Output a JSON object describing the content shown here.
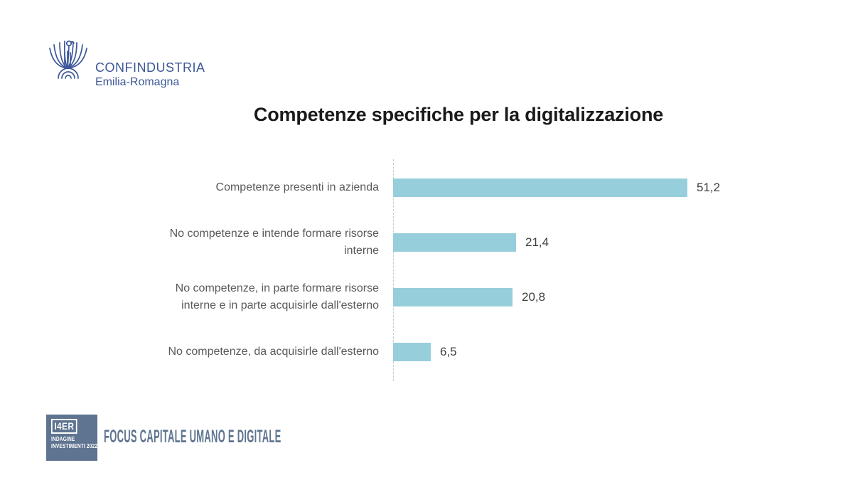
{
  "header": {
    "logo": {
      "org": "CONFINDUSTRIA",
      "region": "Emilia-Romagna"
    }
  },
  "title": "Competenze specifiche per la digitalizzazione",
  "chart_data": {
    "type": "bar",
    "orientation": "horizontal",
    "title": "Competenze specifiche per la digitalizzazione",
    "categories": [
      "Competenze presenti in azienda",
      "No competenze e intende formare risorse interne",
      "No competenze, in parte formare risorse interne e in parte acquisirle dall'esterno",
      "No competenze, da acquisirle dall'esterno"
    ],
    "values": [
      51.2,
      21.4,
      20.8,
      6.5
    ],
    "value_labels": [
      "51,2",
      "21,4",
      "20,8",
      "6,5"
    ],
    "label_lines": [
      [
        "Competenze presenti in azienda"
      ],
      [
        "No competenze e intende formare risorse",
        "interne"
      ],
      [
        "No competenze, in parte formare risorse",
        "interne e in parte acquisirle dall'esterno"
      ],
      [
        "No competenze, da acquisirle dall'esterno"
      ]
    ],
    "xlim": [
      0,
      55
    ],
    "grid": false,
    "legend": null,
    "data_labels": true,
    "bar_color": "#97cedc"
  },
  "footer": {
    "badge": {
      "title": "I4ER",
      "line2": "INDAGINE",
      "line3": "INVESTIMENTI 2022"
    },
    "caption": "FOCUS CAPITALE UMANO E DIGITALE"
  },
  "colors": {
    "bar": "#97cedc",
    "label_text": "#595959",
    "value_text": "#3f3f3f",
    "logo_blue": "#3d5899",
    "footer_blue": "#5e7490",
    "title_text": "#1a1a1a",
    "axis_line": "#c9c9c9"
  }
}
